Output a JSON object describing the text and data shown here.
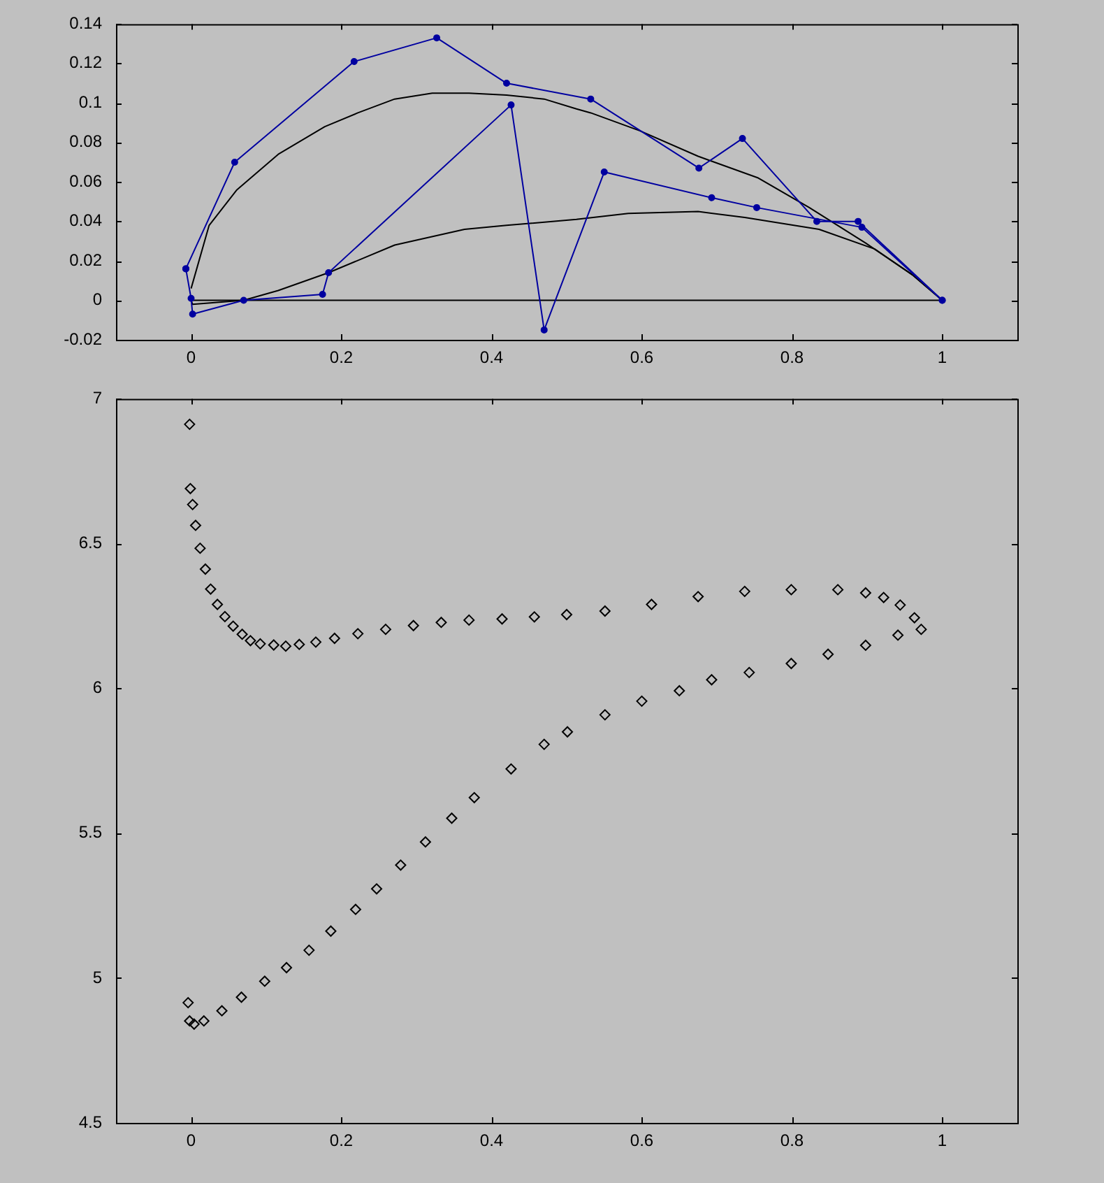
{
  "chart_data": [
    {
      "type": "line",
      "xlim": [
        -0.1,
        1.1
      ],
      "xticks": [
        0,
        0.2,
        0.4,
        0.6,
        0.8,
        1
      ],
      "ylim": [
        -0.02,
        0.14
      ],
      "yticks": [
        -0.02,
        0,
        0.02,
        0.04,
        0.06,
        0.08,
        0.1,
        0.12,
        0.14
      ],
      "grid": false,
      "legend": false,
      "series": [
        {
          "color": "#0000a0",
          "marker": "circle",
          "x": [
            -0.007,
            0.058,
            0.217,
            0.327,
            0.42,
            0.532,
            0.676,
            0.734,
            0.833,
            0.888,
            1
          ],
          "values": [
            0.016,
            0.07,
            0.121,
            0.133,
            0.11,
            0.102,
            0.067,
            0.082,
            0.04,
            0.04,
            0
          ]
        },
        {
          "color": "#0000a0",
          "marker": "circle",
          "x": [
            -0.007,
            0,
            0.002,
            0.07,
            0.175,
            0.183,
            0.426,
            0.47,
            0.55,
            0.693,
            0.753,
            0.893,
            1
          ],
          "values": [
            0.016,
            0.001,
            -0.007,
            0,
            0.003,
            0.014,
            0.099,
            -0.015,
            0.065,
            0.052,
            0.047,
            0.037,
            0
          ]
        },
        {
          "color": "#000000",
          "marker": "none",
          "x": [
            0,
            0.024,
            0.061,
            0.116,
            0.178,
            0.222,
            0.271,
            0.321,
            0.37,
            0.42,
            0.47,
            0.513,
            0.532,
            0.597,
            0.675,
            0.755,
            0.823,
            0.898,
            0.96,
            1
          ],
          "values": [
            0.006,
            0.038,
            0.056,
            0.074,
            0.088,
            0.095,
            0.102,
            0.105,
            0.105,
            0.104,
            0.102,
            0.097,
            0.095,
            0.086,
            0.073,
            0.062,
            0.047,
            0.029,
            0.013,
            0
          ]
        },
        {
          "color": "#000000",
          "marker": "none",
          "x": [
            0,
            0.002,
            0.07,
            0.116,
            0.183,
            0.271,
            0.364,
            0.42,
            0.513,
            0.582,
            0.675,
            0.737,
            0.836,
            0.91,
            0.96,
            1
          ],
          "values": [
            0,
            -0.002,
            0,
            0.005,
            0.014,
            0.028,
            0.036,
            0.038,
            0.041,
            0.044,
            0.045,
            0.042,
            0.036,
            0.026,
            0.013,
            0
          ]
        },
        {
          "color": "#000000",
          "marker": "none",
          "x": [
            0,
            1
          ],
          "values": [
            0,
            0
          ]
        }
      ]
    },
    {
      "type": "scatter",
      "xlim": [
        -0.1,
        1.1
      ],
      "xticks": [
        0,
        0.2,
        0.4,
        0.6,
        0.8,
        1
      ],
      "ylim": [
        4.5,
        7
      ],
      "yticks": [
        4.5,
        5,
        5.5,
        6,
        6.5,
        7
      ],
      "grid": false,
      "legend": false,
      "series": [
        {
          "color": "#000000",
          "marker": "diamond",
          "x": [
            -0.002,
            -0.001,
            0.002,
            0.006,
            0.012,
            0.019,
            0.026,
            0.035,
            0.045,
            0.056,
            0.068,
            0.079,
            0.092,
            0.11,
            0.126,
            0.144,
            0.166,
            0.191,
            0.222,
            0.259,
            0.296,
            0.333,
            0.37,
            0.414,
            0.457,
            0.5,
            0.551,
            0.613,
            0.675,
            0.737,
            0.799,
            0.861,
            0.898,
            0.922,
            0.944,
            0.963,
            0.972,
            0.941,
            0.898,
            0.848,
            0.799,
            0.743,
            0.693,
            0.65,
            0.6,
            0.551,
            0.501,
            0.47,
            0.426,
            0.377,
            0.347,
            0.312,
            0.279,
            0.247,
            0.219,
            0.186,
            0.157,
            0.127,
            0.098,
            0.067,
            0.041,
            0.017,
            0.004,
            -0.002,
            -0.004
          ],
          "values": [
            6.912,
            6.69,
            6.635,
            6.563,
            6.484,
            6.412,
            6.343,
            6.29,
            6.248,
            6.215,
            6.187,
            6.165,
            6.154,
            6.15,
            6.146,
            6.152,
            6.16,
            6.173,
            6.189,
            6.204,
            6.217,
            6.228,
            6.236,
            6.24,
            6.247,
            6.255,
            6.267,
            6.29,
            6.317,
            6.335,
            6.341,
            6.341,
            6.33,
            6.314,
            6.288,
            6.244,
            6.204,
            6.184,
            6.149,
            6.118,
            6.086,
            6.055,
            6.03,
            5.992,
            5.956,
            5.909,
            5.85,
            5.807,
            5.722,
            5.623,
            5.552,
            5.47,
            5.39,
            5.308,
            5.237,
            5.162,
            5.096,
            5.036,
            4.989,
            4.934,
            4.887,
            4.852,
            4.841,
            4.852,
            4.915
          ]
        }
      ]
    }
  ]
}
